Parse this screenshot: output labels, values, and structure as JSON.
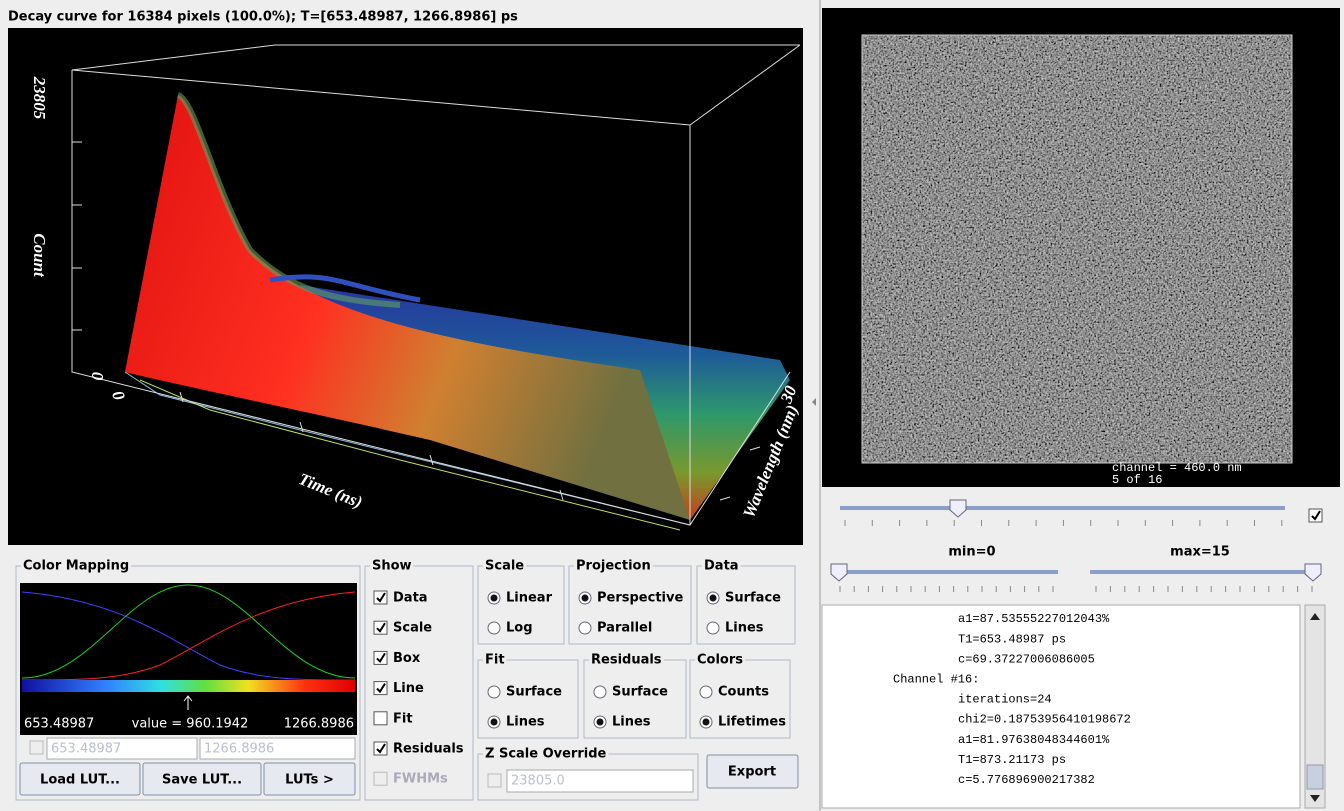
{
  "plot": {
    "title": "Decay curve for 16384 pixels (100.0%); T=[653.48987, 1266.8986] ps",
    "count_max": "23805",
    "count_label": "Count",
    "count_min": "0",
    "time_min": "0",
    "time_label": "Time (ns)",
    "wavelength_label": "Wavelength (nm)",
    "wavelength_max": "30"
  },
  "color_mapping": {
    "title": "Color Mapping",
    "min": "653.48987",
    "value": "value = 960.1942",
    "max": "1266.8986",
    "min_field": "653.48987",
    "max_field": "1266.8986",
    "enabled": false,
    "buttons": [
      "Load LUT...",
      "Save LUT...",
      "LUTs >"
    ]
  },
  "show": {
    "title": "Show",
    "options": [
      {
        "label": "Data",
        "checked": true
      },
      {
        "label": "Scale",
        "checked": true
      },
      {
        "label": "Box",
        "checked": true
      },
      {
        "label": "Line",
        "checked": true
      },
      {
        "label": "Fit",
        "checked": false
      },
      {
        "label": "Residuals",
        "checked": true
      },
      {
        "label": "FWHMs",
        "checked": false,
        "disabled": true
      }
    ]
  },
  "scale": {
    "title": "Scale",
    "options": [
      {
        "label": "Linear",
        "checked": true
      },
      {
        "label": "Log",
        "checked": false
      }
    ]
  },
  "projection": {
    "title": "Projection",
    "options": [
      {
        "label": "Perspective",
        "checked": true
      },
      {
        "label": "Parallel",
        "checked": false
      }
    ]
  },
  "data": {
    "title": "Data",
    "options": [
      {
        "label": "Surface",
        "checked": true
      },
      {
        "label": "Lines",
        "checked": false
      }
    ]
  },
  "fit": {
    "title": "Fit",
    "options": [
      {
        "label": "Surface",
        "checked": false
      },
      {
        "label": "Lines",
        "checked": true
      }
    ]
  },
  "residuals": {
    "title": "Residuals",
    "options": [
      {
        "label": "Surface",
        "checked": false
      },
      {
        "label": "Lines",
        "checked": true
      }
    ]
  },
  "colors": {
    "title": "Colors",
    "options": [
      {
        "label": "Counts",
        "checked": false
      },
      {
        "label": "Lifetimes",
        "checked": true
      }
    ]
  },
  "z_scale_override": {
    "title": "Z Scale Override",
    "checked": false,
    "field": "23805.0"
  },
  "export_button": "Export",
  "image": {
    "caption_lines": [
      "channel = 460.0 nm",
      "5 of 16"
    ]
  },
  "channel_checkbox": true,
  "min_label": "min=0",
  "max_label": "max=15",
  "log_lines": [
    "a1=87.53555227012043%",
    "T1=653.48987 ps",
    "c=69.37227006086005",
    "Channel #16:",
    "iterations=24",
    "chi2=0.18753956410198672",
    "a1=81.97638048344601%",
    "T1=873.21173 ps",
    "c=5.776896900217382"
  ]
}
